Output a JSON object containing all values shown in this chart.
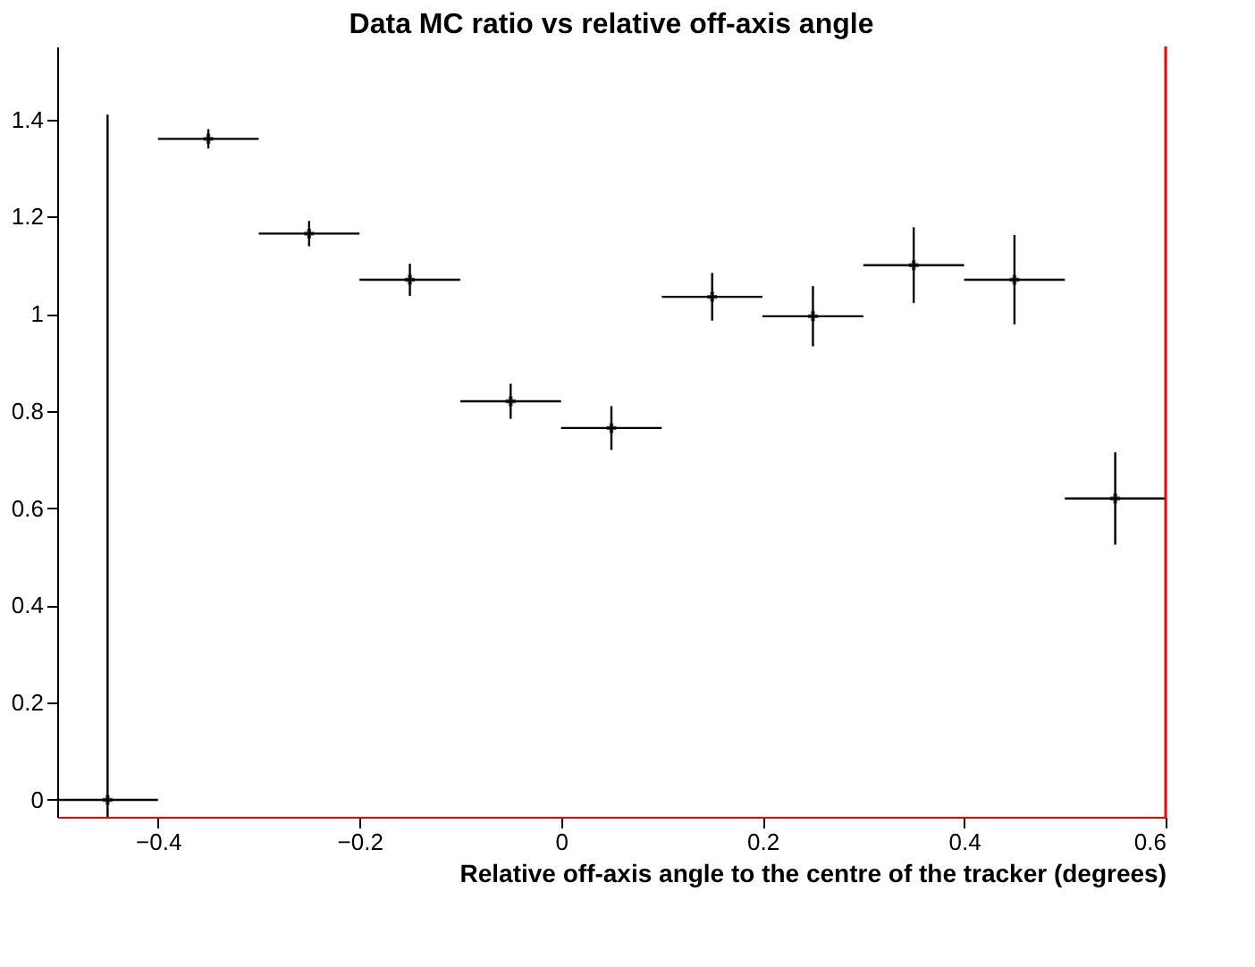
{
  "chart_data": {
    "type": "scatter",
    "title": "Data MC ratio vs relative off-axis angle",
    "xlabel": "Relative off-axis angle to the centre of the tracker (degrees)",
    "x": [
      -0.45,
      -0.35,
      -0.25,
      -0.15,
      -0.05,
      0.05,
      0.15,
      0.25,
      0.35,
      0.45,
      0.55
    ],
    "values": [
      0,
      1.36,
      1.165,
      1.07,
      0.82,
      0.765,
      1.035,
      0.995,
      1.1,
      1.07,
      0.62
    ],
    "errors": [
      [
        -0.035,
        1.41
      ],
      0.02,
      0.026,
      0.033,
      0.036,
      0.045,
      0.049,
      0.062,
      0.078,
      0.092,
      0.095
    ],
    "xerrors": [
      0.05,
      0.05,
      0.05,
      0.05,
      0.05,
      0.05,
      0.05,
      0.05,
      0.05,
      0.05,
      0.05
    ],
    "color": "#000000",
    "marker": "cross",
    "xlim": [
      -0.5,
      0.6
    ],
    "xticks": [
      -0.4,
      -0.2,
      0,
      0.2,
      0.4,
      0.6
    ],
    "ylim": [
      -0.035,
      1.55
    ],
    "yticks": [
      0,
      0.2,
      0.4,
      0.6,
      0.8,
      1,
      1.2,
      1.4
    ],
    "grid": false
  }
}
